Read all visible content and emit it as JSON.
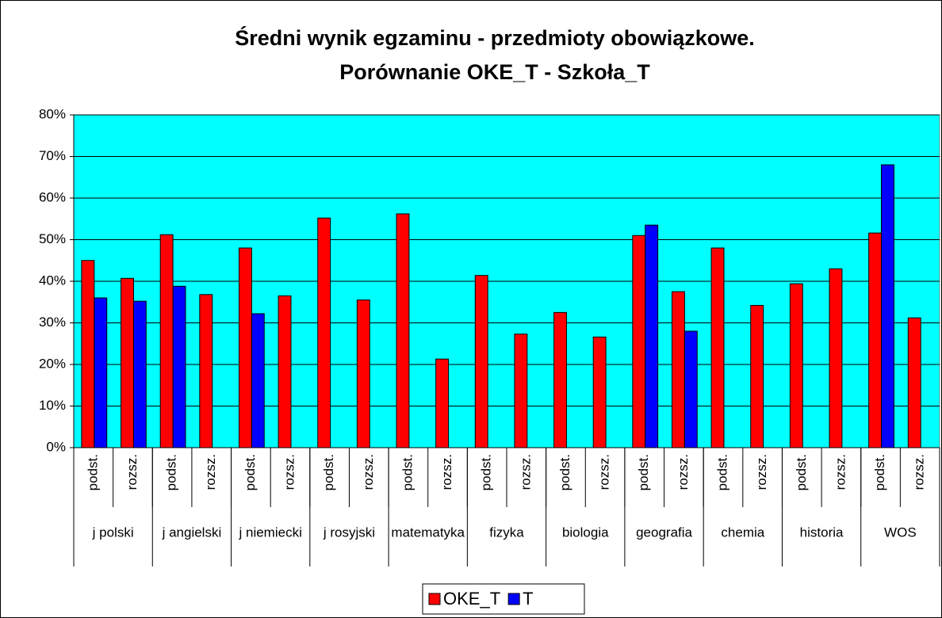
{
  "chart_data": {
    "type": "bar",
    "title": [
      "Średni wynik egzaminu - przedmioty obowiązkowe.",
      "Porównanie OKE_T - Szkoła_T"
    ],
    "groups": [
      "j polski",
      "j angielski",
      "j niemiecki",
      "j rosyjski",
      "matematyka",
      "fizyka",
      "biologia",
      "geografia",
      "chemia",
      "historia",
      "WOS"
    ],
    "categories": [
      "podst.",
      "rozsz.",
      "podst.",
      "rozsz.",
      "podst.",
      "rozsz.",
      "podst.",
      "rozsz.",
      "podst.",
      "rozsz.",
      "podst.",
      "rozsz.",
      "podst.",
      "rozsz.",
      "podst.",
      "rozsz.",
      "podst.",
      "rozsz.",
      "podst.",
      "rozsz.",
      "podst.",
      "rozsz."
    ],
    "series": [
      {
        "name": "OKE_T",
        "color": "#ff0000",
        "values": [
          45,
          40.7,
          51.2,
          36.8,
          48,
          36.5,
          55.2,
          35.5,
          56.2,
          21.3,
          41.4,
          27.3,
          32.5,
          26.6,
          51,
          37.5,
          48,
          34.2,
          39.4,
          43,
          51.6,
          31.2
        ]
      },
      {
        "name": "T",
        "color": "#0000ff",
        "values": [
          36,
          35.2,
          38.8,
          null,
          32.2,
          null,
          null,
          null,
          null,
          null,
          null,
          null,
          null,
          null,
          53.5,
          28,
          null,
          null,
          null,
          null,
          68,
          null
        ]
      }
    ],
    "ylim": [
      0,
      80
    ],
    "yticks": [
      {
        "value": 0,
        "label": "0%"
      },
      {
        "value": 10,
        "label": "10%"
      },
      {
        "value": 20,
        "label": "20%"
      },
      {
        "value": 30,
        "label": "30%"
      },
      {
        "value": 40,
        "label": "40%"
      },
      {
        "value": 50,
        "label": "50%"
      },
      {
        "value": 60,
        "label": "60%"
      },
      {
        "value": 70,
        "label": "70%"
      },
      {
        "value": 80,
        "label": "80%"
      }
    ],
    "grid": true,
    "plot_background": "#00ffff",
    "legend": "bottom"
  }
}
